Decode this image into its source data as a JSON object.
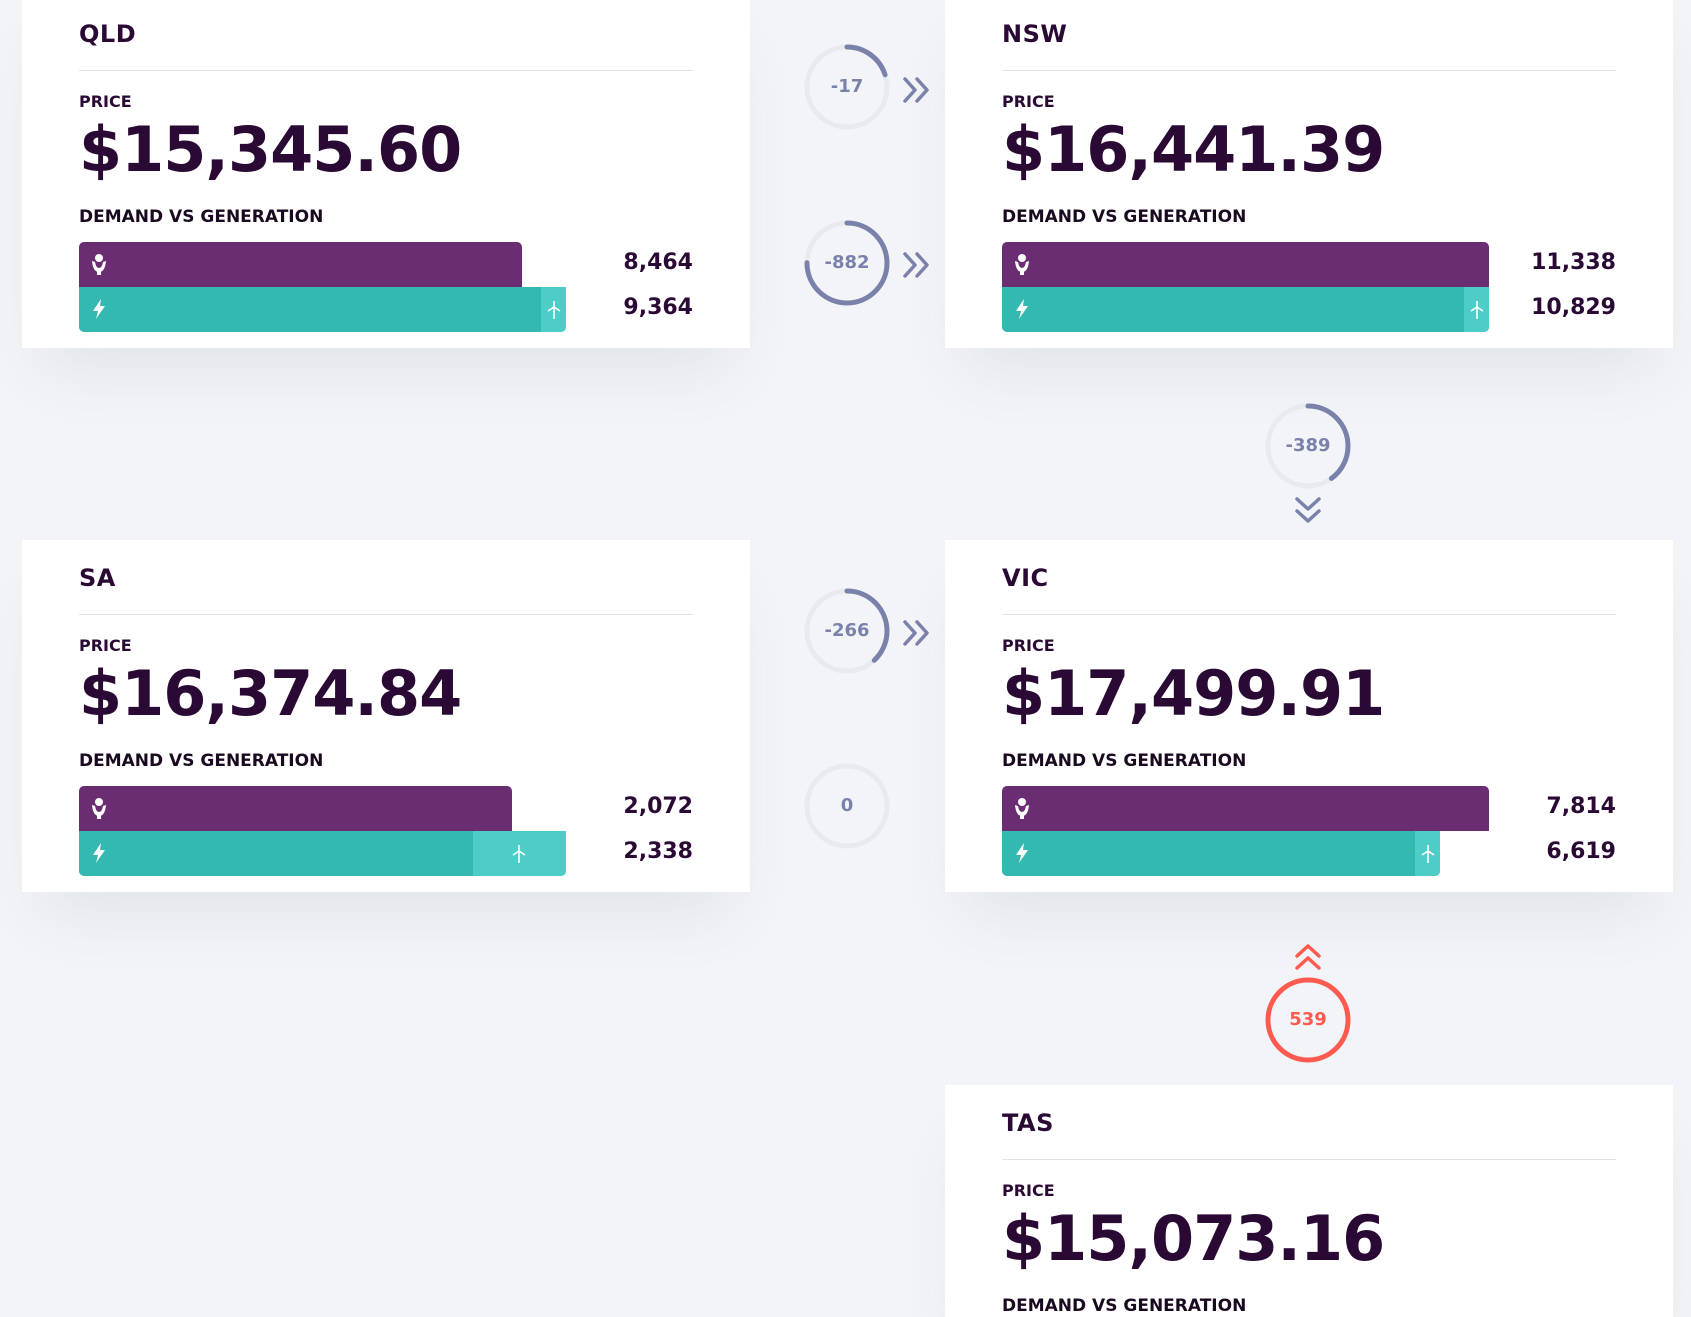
{
  "colors": {
    "demand": "#6b2d72",
    "generation": "#33b8b2",
    "renewable": "#4ecdc8",
    "text_dark": "#2a0a34",
    "flow_neutral": "#7a81ab",
    "flow_ring_bg": "#e8eaef",
    "flow_import": "#ff5a4f"
  },
  "labels": {
    "price": "PRICE",
    "demand_vs_generation": "DEMAND VS GENERATION"
  },
  "regions": {
    "qld": {
      "name": "QLD",
      "price": "$15,345.60",
      "demand": "8,464",
      "generation": "9,364",
      "demand_fraction": 0.9,
      "generation_fraction": 0.99,
      "renewable_fraction": 0.05
    },
    "nsw": {
      "name": "NSW",
      "price": "$16,441.39",
      "demand": "11,338",
      "generation": "10,829",
      "demand_fraction": 0.99,
      "generation_fraction": 0.99,
      "renewable_fraction": 0.05
    },
    "sa": {
      "name": "SA",
      "price": "$16,374.84",
      "demand": "2,072",
      "generation": "2,338",
      "demand_fraction": 0.88,
      "generation_fraction": 0.99,
      "renewable_fraction": 0.19
    },
    "vic": {
      "name": "VIC",
      "price": "$17,499.91",
      "demand": "7,814",
      "generation": "6,619",
      "demand_fraction": 0.99,
      "generation_fraction": 0.89,
      "renewable_fraction": 0.05
    },
    "tas": {
      "name": "TAS",
      "price": "$15,073.16"
    }
  },
  "interconnectors": {
    "qld_nsw_upper": {
      "value": "-17",
      "arc_fraction": 0.2,
      "direction": "right"
    },
    "qld_nsw_lower": {
      "value": "-882",
      "arc_fraction": 0.75,
      "direction": "right"
    },
    "nsw_vic": {
      "value": "-389",
      "arc_fraction": 0.4,
      "direction": "down"
    },
    "sa_vic_upper": {
      "value": "-266",
      "arc_fraction": 0.38,
      "direction": "right"
    },
    "sa_vic_lower": {
      "value": "0",
      "arc_fraction": 0,
      "direction": "none"
    },
    "vic_tas": {
      "value": "539",
      "arc_fraction": 1,
      "direction": "up"
    }
  },
  "icons": {
    "demand": "person-plug-icon",
    "generation": "lightning-icon",
    "renewable": "wind-turbine-icon",
    "flow_right": "double-chevron-right-icon",
    "flow_down": "double-chevron-down-icon",
    "flow_up": "double-chevron-up-icon"
  }
}
